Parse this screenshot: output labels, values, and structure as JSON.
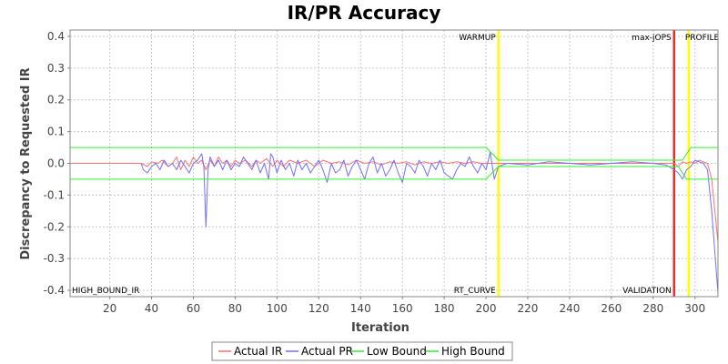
{
  "chart_data": {
    "type": "line",
    "title": "IR/PR Accuracy",
    "xlabel": "Iteration",
    "ylabel": "Discrepancy to Requested IR",
    "xlim": [
      1,
      311
    ],
    "ylim": [
      -0.42,
      0.42
    ],
    "x_ticks": [
      20,
      40,
      60,
      80,
      100,
      120,
      140,
      160,
      180,
      200,
      220,
      240,
      260,
      280,
      300
    ],
    "y_ticks": [
      0.4,
      0.3,
      0.2,
      0.1,
      0.0,
      -0.1,
      -0.2,
      -0.3,
      -0.4
    ],
    "y_tick_labels": [
      "0.4",
      "0.3",
      "0.2",
      "0.1",
      "0.0",
      "-0.1",
      "-0.2",
      "-0.3",
      "-0.4"
    ],
    "grid": true,
    "legend_position": "bottom",
    "markers": [
      {
        "label": "HIGH_BOUND_IR",
        "x": 1,
        "label_position": "bottom",
        "color": "#ffff00"
      },
      {
        "label": "WARMUP",
        "x": 206,
        "label_position": "top",
        "color": "#ffff00"
      },
      {
        "label": "RT_CURVE",
        "x": 206,
        "label_position": "bottom",
        "color": "#ffff00"
      },
      {
        "label": "max-jOPS",
        "x": 290,
        "label_position": "top",
        "color": "#e03030"
      },
      {
        "label": "VALIDATION",
        "x": 290,
        "label_position": "bottom",
        "color": "#e03030"
      },
      {
        "label": "PROFILE",
        "x": 297,
        "label_position": "top",
        "color": "#ffff00"
      }
    ],
    "series": [
      {
        "name": "Actual IR",
        "color": "#ff7070",
        "points": [
          [
            1,
            0
          ],
          [
            35,
            0
          ],
          [
            38,
            -0.01
          ],
          [
            40,
            0.005
          ],
          [
            43,
            0
          ],
          [
            45,
            0.01
          ],
          [
            48,
            -0.01
          ],
          [
            50,
            0
          ],
          [
            52,
            0.02
          ],
          [
            54,
            -0.02
          ],
          [
            56,
            0.01
          ],
          [
            58,
            -0.01
          ],
          [
            60,
            0.02
          ],
          [
            62,
            0
          ],
          [
            64,
            0.01
          ],
          [
            66,
            -0.02
          ],
          [
            68,
            0.01
          ],
          [
            70,
            -0.01
          ],
          [
            72,
            0.02
          ],
          [
            74,
            0
          ],
          [
            76,
            0.01
          ],
          [
            78,
            -0.01
          ],
          [
            80,
            0.01
          ],
          [
            82,
            0
          ],
          [
            85,
            0.01
          ],
          [
            88,
            -0.01
          ],
          [
            90,
            0.01
          ],
          [
            92,
            0
          ],
          [
            95,
            0.015
          ],
          [
            98,
            -0.01
          ],
          [
            100,
            0.01
          ],
          [
            103,
            -0.01
          ],
          [
            106,
            0.01
          ],
          [
            110,
            0
          ],
          [
            114,
            0.01
          ],
          [
            118,
            -0.01
          ],
          [
            122,
            0.01
          ],
          [
            126,
            0
          ],
          [
            130,
            0.005
          ],
          [
            134,
            -0.005
          ],
          [
            138,
            0.01
          ],
          [
            142,
            0
          ],
          [
            146,
            0.005
          ],
          [
            150,
            -0.005
          ],
          [
            154,
            0.005
          ],
          [
            158,
            0
          ],
          [
            162,
            0.005
          ],
          [
            166,
            -0.005
          ],
          [
            170,
            0.005
          ],
          [
            174,
            0
          ],
          [
            178,
            0.005
          ],
          [
            182,
            0
          ],
          [
            186,
            0.005
          ],
          [
            190,
            0
          ],
          [
            194,
            0.005
          ],
          [
            198,
            0
          ],
          [
            202,
            0
          ],
          [
            206,
            0
          ],
          [
            210,
            0
          ],
          [
            220,
            0
          ],
          [
            240,
            0
          ],
          [
            260,
            0
          ],
          [
            280,
            0
          ],
          [
            290,
            0
          ],
          [
            292,
            -0.01
          ],
          [
            294,
            0.005
          ],
          [
            296,
            0
          ],
          [
            298,
            0.005
          ],
          [
            300,
            0
          ],
          [
            302,
            0.01
          ],
          [
            304,
            0.005
          ],
          [
            306,
            0
          ],
          [
            308,
            -0.05
          ],
          [
            311,
            -0.25
          ]
        ]
      },
      {
        "name": "Actual PR",
        "color": "#7070ff",
        "points": [
          [
            35,
            0
          ],
          [
            36,
            -0.02
          ],
          [
            38,
            -0.03
          ],
          [
            40,
            -0.01
          ],
          [
            42,
            0
          ],
          [
            44,
            -0.02
          ],
          [
            46,
            0.01
          ],
          [
            48,
            -0.01
          ],
          [
            50,
            0
          ],
          [
            52,
            -0.02
          ],
          [
            54,
            0.01
          ],
          [
            56,
            -0.01
          ],
          [
            58,
            -0.03
          ],
          [
            60,
            0
          ],
          [
            62,
            0.01
          ],
          [
            64,
            0.03
          ],
          [
            65,
            -0.01
          ],
          [
            66,
            -0.2
          ],
          [
            67,
            -0.02
          ],
          [
            68,
            0.02
          ],
          [
            70,
            -0.01
          ],
          [
            72,
            0.01
          ],
          [
            74,
            -0.02
          ],
          [
            76,
            0.01
          ],
          [
            78,
            -0.02
          ],
          [
            80,
            0
          ],
          [
            82,
            -0.01
          ],
          [
            84,
            0.02
          ],
          [
            86,
            0
          ],
          [
            88,
            -0.02
          ],
          [
            90,
            0.01
          ],
          [
            92,
            -0.03
          ],
          [
            94,
            0
          ],
          [
            96,
            -0.05
          ],
          [
            97,
            0.03
          ],
          [
            98,
            0.02
          ],
          [
            100,
            -0.03
          ],
          [
            102,
            0.01
          ],
          [
            104,
            -0.02
          ],
          [
            106,
            0
          ],
          [
            108,
            -0.04
          ],
          [
            110,
            0.01
          ],
          [
            112,
            -0.02
          ],
          [
            114,
            0
          ],
          [
            116,
            -0.03
          ],
          [
            118,
            -0.01
          ],
          [
            120,
            0.01
          ],
          [
            122,
            -0.02
          ],
          [
            124,
            -0.06
          ],
          [
            126,
            0
          ],
          [
            128,
            -0.03
          ],
          [
            130,
            -0.02
          ],
          [
            132,
            0.01
          ],
          [
            134,
            -0.04
          ],
          [
            136,
            -0.01
          ],
          [
            138,
            0.01
          ],
          [
            140,
            -0.02
          ],
          [
            142,
            -0.05
          ],
          [
            144,
            0
          ],
          [
            146,
            0.02
          ],
          [
            148,
            -0.03
          ],
          [
            150,
            0
          ],
          [
            152,
            -0.04
          ],
          [
            154,
            -0.02
          ],
          [
            156,
            0.01
          ],
          [
            158,
            -0.03
          ],
          [
            160,
            -0.06
          ],
          [
            162,
            0
          ],
          [
            164,
            -0.01
          ],
          [
            166,
            -0.03
          ],
          [
            168,
            0.01
          ],
          [
            170,
            -0.01
          ],
          [
            172,
            -0.04
          ],
          [
            174,
            0
          ],
          [
            176,
            -0.02
          ],
          [
            178,
            0.01
          ],
          [
            180,
            -0.03
          ],
          [
            182,
            -0.04
          ],
          [
            184,
            -0.05
          ],
          [
            186,
            -0.02
          ],
          [
            188,
            0
          ],
          [
            190,
            -0.01
          ],
          [
            192,
            0.02
          ],
          [
            194,
            -0.01
          ],
          [
            196,
            -0.03
          ],
          [
            198,
            0
          ],
          [
            200,
            -0.02
          ],
          [
            202,
            0.035
          ],
          [
            204,
            -0.05
          ],
          [
            206,
            -0.01
          ],
          [
            210,
            0
          ],
          [
            220,
            -0.005
          ],
          [
            230,
            0.005
          ],
          [
            240,
            0
          ],
          [
            250,
            -0.005
          ],
          [
            260,
            0
          ],
          [
            270,
            0.005
          ],
          [
            280,
            0
          ],
          [
            286,
            -0.005
          ],
          [
            290,
            -0.02
          ],
          [
            292,
            -0.03
          ],
          [
            294,
            -0.05
          ],
          [
            296,
            -0.02
          ],
          [
            298,
            -0.01
          ],
          [
            300,
            0.01
          ],
          [
            302,
            0.005
          ],
          [
            304,
            0
          ],
          [
            306,
            -0.02
          ],
          [
            308,
            -0.15
          ],
          [
            311,
            -0.41
          ]
        ]
      },
      {
        "name": "Low Bound",
        "color": "#33ee33",
        "points": [
          [
            1,
            -0.05
          ],
          [
            200,
            -0.05
          ],
          [
            206,
            -0.01
          ],
          [
            290,
            -0.01
          ],
          [
            292,
            -0.01
          ],
          [
            296,
            -0.05
          ],
          [
            311,
            -0.05
          ]
        ]
      },
      {
        "name": "High Bound",
        "color": "#33ee33",
        "points": [
          [
            1,
            0.05
          ],
          [
            200,
            0.05
          ],
          [
            206,
            0.01
          ],
          [
            290,
            0.01
          ],
          [
            294,
            0.01
          ],
          [
            298,
            0.05
          ],
          [
            311,
            0.05
          ]
        ]
      }
    ]
  }
}
